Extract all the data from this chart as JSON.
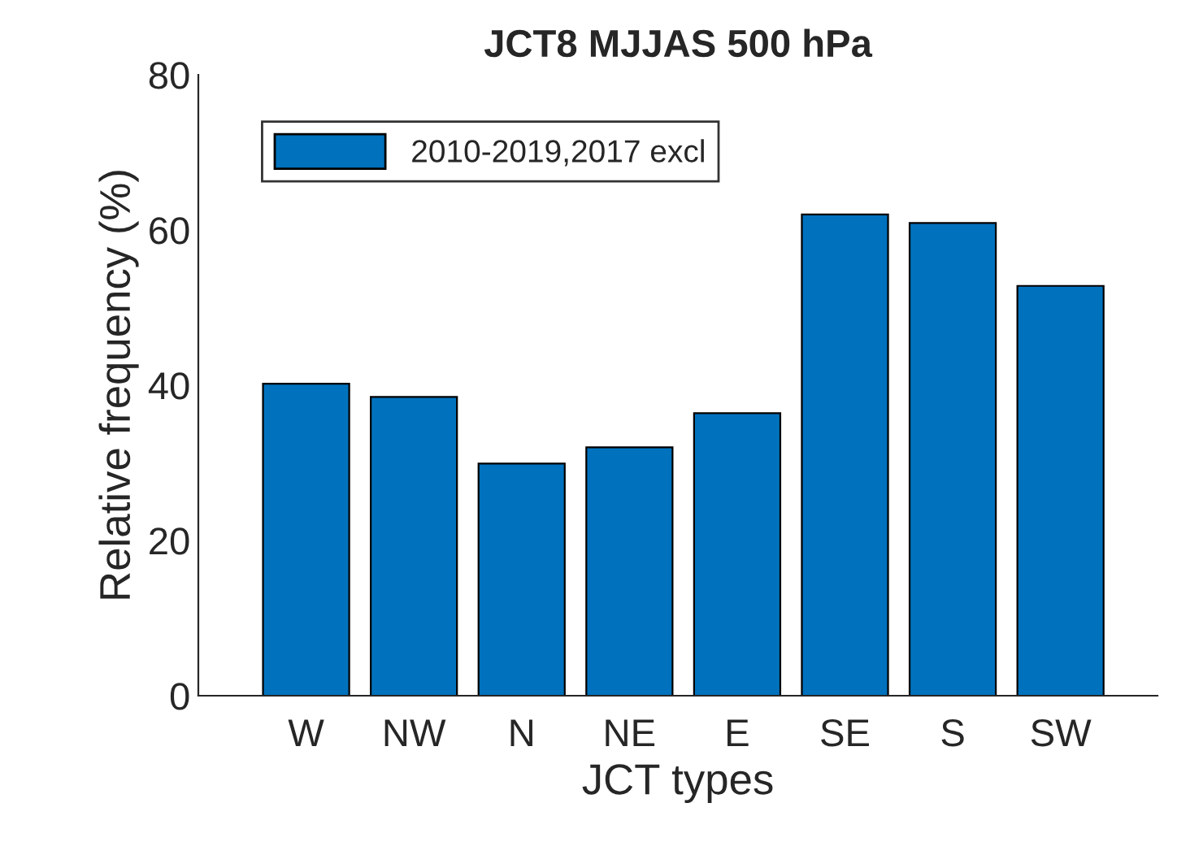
{
  "chart_data": {
    "type": "bar",
    "title": "JCT8 MJJAS 500 hPa",
    "xlabel": "JCT types",
    "ylabel": "Relative frequency (%)",
    "categories": [
      "W",
      "NW",
      "N",
      "NE",
      "E",
      "SE",
      "S",
      "SW"
    ],
    "series": [
      {
        "name": "2010-2019,2017 excl",
        "color": "#0072bd",
        "values": [
          40.2,
          38.5,
          29.9,
          32.0,
          36.4,
          62.0,
          60.9,
          52.8
        ]
      }
    ],
    "ylim": [
      0,
      80
    ],
    "yticks": [
      0,
      20,
      40,
      60,
      80
    ],
    "grid": false,
    "legend": "top left"
  }
}
